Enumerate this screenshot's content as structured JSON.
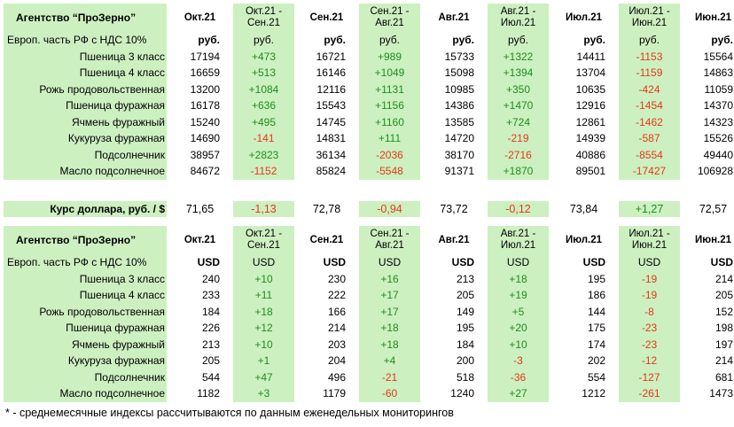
{
  "agency_title": "Агентство “ПроЗерно”",
  "region_label": "Европ. часть РФ с НДС 10%",
  "columns": [
    "Окт.21",
    "Окт.21 - Сен.21",
    "Сен.21",
    "Сен.21 - Авг.21",
    "Авг.21",
    "Авг.21 - Июл.21",
    "Июл.21",
    "Июл.21 - Июн.21",
    "Июн.21"
  ],
  "column_headers": [
    {
      "l1": "Окт.21",
      "l2": ""
    },
    {
      "l1": "Окт.21 -",
      "l2": "Сен.21"
    },
    {
      "l1": "Сен.21",
      "l2": ""
    },
    {
      "l1": "Сен.21 -",
      "l2": "Авг.21"
    },
    {
      "l1": "Авг.21",
      "l2": ""
    },
    {
      "l1": "Авг.21 -",
      "l2": "Июл.21"
    },
    {
      "l1": "Июл.21",
      "l2": ""
    },
    {
      "l1": "Июл.21 -",
      "l2": "Июн.21"
    },
    {
      "l1": "Июн.21",
      "l2": ""
    }
  ],
  "rub_block": {
    "unit": "руб.",
    "rows": [
      {
        "name": "Пшеница 3 класс",
        "values": [
          "17194",
          "+473",
          "16721",
          "+989",
          "15733",
          "+1322",
          "14411",
          "-1153",
          "15564"
        ]
      },
      {
        "name": "Пшеница 4 класс",
        "values": [
          "16659",
          "+513",
          "16146",
          "+1049",
          "15098",
          "+1394",
          "13704",
          "-1159",
          "14863"
        ]
      },
      {
        "name": "Рожь продовольственная",
        "values": [
          "13200",
          "+1084",
          "12116",
          "+1131",
          "10985",
          "+350",
          "10635",
          "-424",
          "11059"
        ]
      },
      {
        "name": "Пшеница фуражная",
        "values": [
          "16178",
          "+636",
          "15543",
          "+1156",
          "14386",
          "+1470",
          "12916",
          "-1454",
          "14370"
        ]
      },
      {
        "name": "Ячмень фуражный",
        "values": [
          "15240",
          "+495",
          "14745",
          "+1160",
          "13585",
          "+724",
          "12861",
          "-1462",
          "14323"
        ]
      },
      {
        "name": "Кукуруза фуражная",
        "values": [
          "14690",
          "-141",
          "14831",
          "+111",
          "14720",
          "-219",
          "14939",
          "-587",
          "15526"
        ]
      },
      {
        "name": "Подсолнечник",
        "values": [
          "38957",
          "+2823",
          "36134",
          "-2036",
          "38170",
          "-2716",
          "40886",
          "-8554",
          "49440"
        ]
      },
      {
        "name": "Масло подсолнечное",
        "values": [
          "84672",
          "-1152",
          "85824",
          "-5548",
          "91371",
          "+1870",
          "89501",
          "-17427",
          "106928"
        ]
      }
    ]
  },
  "rate": {
    "label": "Курс доллара, руб. / $",
    "values": [
      "71,65",
      "-1,13",
      "72,78",
      "-0,94",
      "73,72",
      "-0,12",
      "73,84",
      "+1,27",
      "72,57"
    ]
  },
  "usd_block": {
    "unit": "USD",
    "rows": [
      {
        "name": "Пшеница 3 класс",
        "values": [
          "240",
          "+10",
          "230",
          "+16",
          "213",
          "+18",
          "195",
          "-19",
          "214"
        ]
      },
      {
        "name": "Пшеница 4 класс",
        "values": [
          "233",
          "+11",
          "222",
          "+17",
          "205",
          "+19",
          "186",
          "-19",
          "205"
        ]
      },
      {
        "name": "Рожь продовольственная",
        "values": [
          "184",
          "+18",
          "166",
          "+17",
          "149",
          "+5",
          "144",
          "-8",
          "152"
        ]
      },
      {
        "name": "Пшеница фуражная",
        "values": [
          "226",
          "+12",
          "214",
          "+18",
          "195",
          "+20",
          "175",
          "-23",
          "198"
        ]
      },
      {
        "name": "Ячмень фуражный",
        "values": [
          "213",
          "+10",
          "203",
          "+18",
          "184",
          "+10",
          "174",
          "-23",
          "197"
        ]
      },
      {
        "name": "Кукуруза фуражная",
        "values": [
          "205",
          "+1",
          "204",
          "+4",
          "200",
          "-3",
          "202",
          "-12",
          "214"
        ]
      },
      {
        "name": "Подсолнечник",
        "values": [
          "544",
          "+47",
          "496",
          "-21",
          "518",
          "-36",
          "554",
          "-127",
          "681"
        ]
      },
      {
        "name": "Масло подсолнечное",
        "values": [
          "1182",
          "+3",
          "1179",
          "-60",
          "1240",
          "+27",
          "1212",
          "-261",
          "1473"
        ]
      }
    ]
  },
  "footnote": "* - среднемесячные индексы рассчитываются по данным еженедельных мониторингов",
  "colors": {
    "green_band": "#cdf0c1",
    "positive": "#1b8f1b",
    "negative": "#e8361a"
  }
}
